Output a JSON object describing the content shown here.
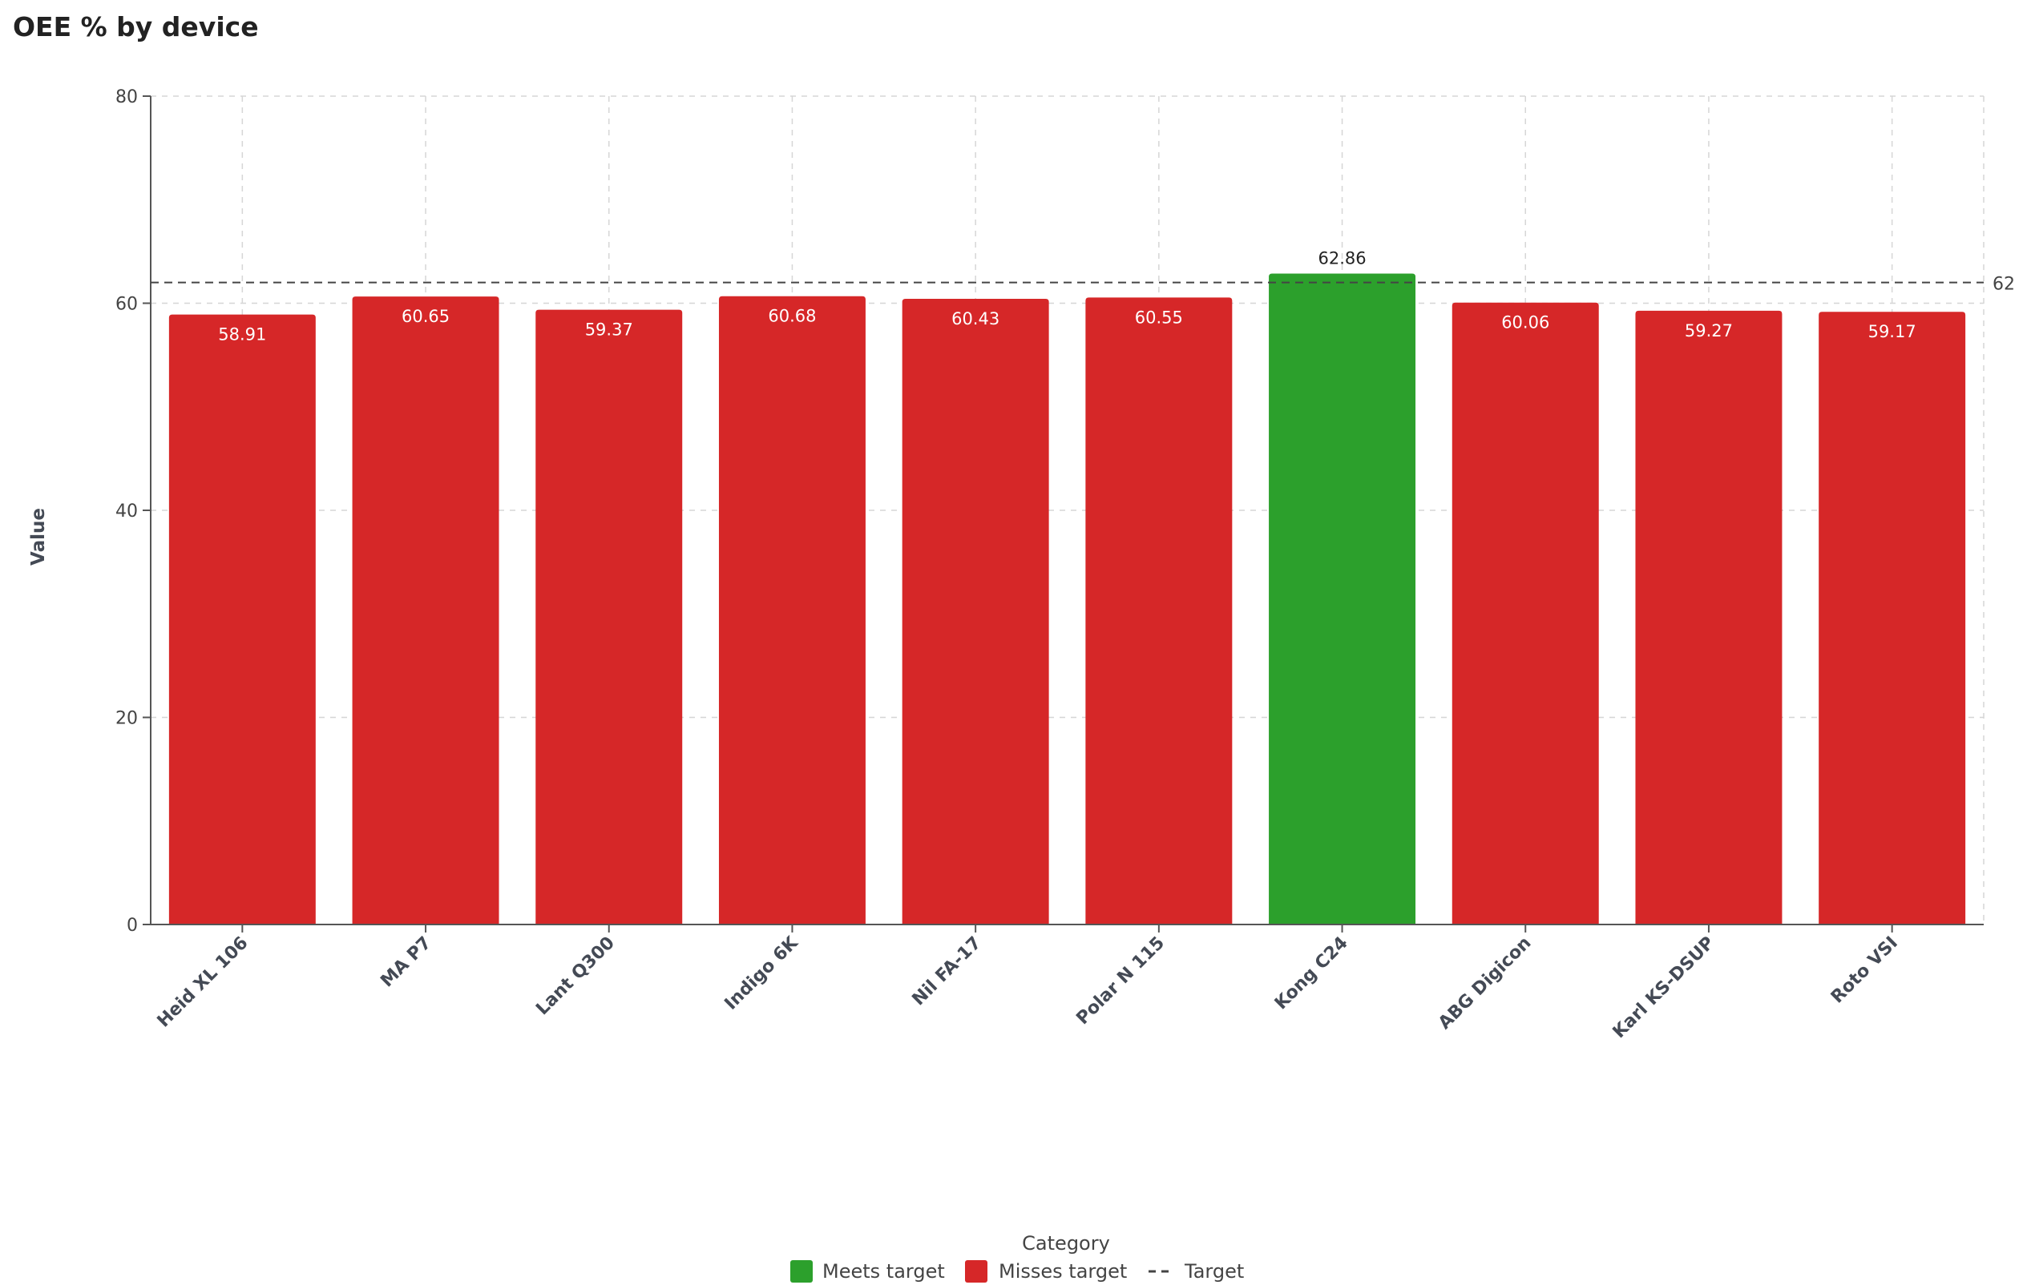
{
  "title": "OEE % by device",
  "chart_data": {
    "type": "bar",
    "title": "OEE % by device",
    "xlabel": "",
    "ylabel": "Value",
    "ylim": [
      0,
      80
    ],
    "yticks": [
      0,
      20,
      40,
      60,
      80
    ],
    "grid": true,
    "legend_position": "bottom-center",
    "legend_title": "Category",
    "categories": [
      "Heid XL 106",
      "MA P7",
      "Lant Q300",
      "Indigo 6K",
      "Nil FA-17",
      "Polar N 115",
      "Kong C24",
      "ABG Digicon",
      "Karl KS-DSUP",
      "Roto VSI"
    ],
    "values": [
      58.91,
      60.65,
      59.37,
      60.68,
      60.43,
      60.55,
      62.86,
      60.06,
      59.27,
      59.17
    ],
    "value_labels": [
      "58.91",
      "60.65",
      "59.37",
      "60.68",
      "60.43",
      "60.55",
      "62.86",
      "60.06",
      "59.27",
      "59.17"
    ],
    "status": [
      "Misses target",
      "Misses target",
      "Misses target",
      "Misses target",
      "Misses target",
      "Misses target",
      "Meets target",
      "Misses target",
      "Misses target",
      "Misses target"
    ],
    "target": {
      "name": "Target",
      "value": 62,
      "label": "62"
    },
    "legend": [
      {
        "name": "Meets target",
        "color": "#2ca02c",
        "kind": "bar"
      },
      {
        "name": "Misses target",
        "color": "#d62728",
        "kind": "bar"
      },
      {
        "name": "Target",
        "color": "#444444",
        "kind": "dashed-line"
      }
    ],
    "colors": {
      "meets": "#2ca02c",
      "misses": "#d62728"
    }
  }
}
